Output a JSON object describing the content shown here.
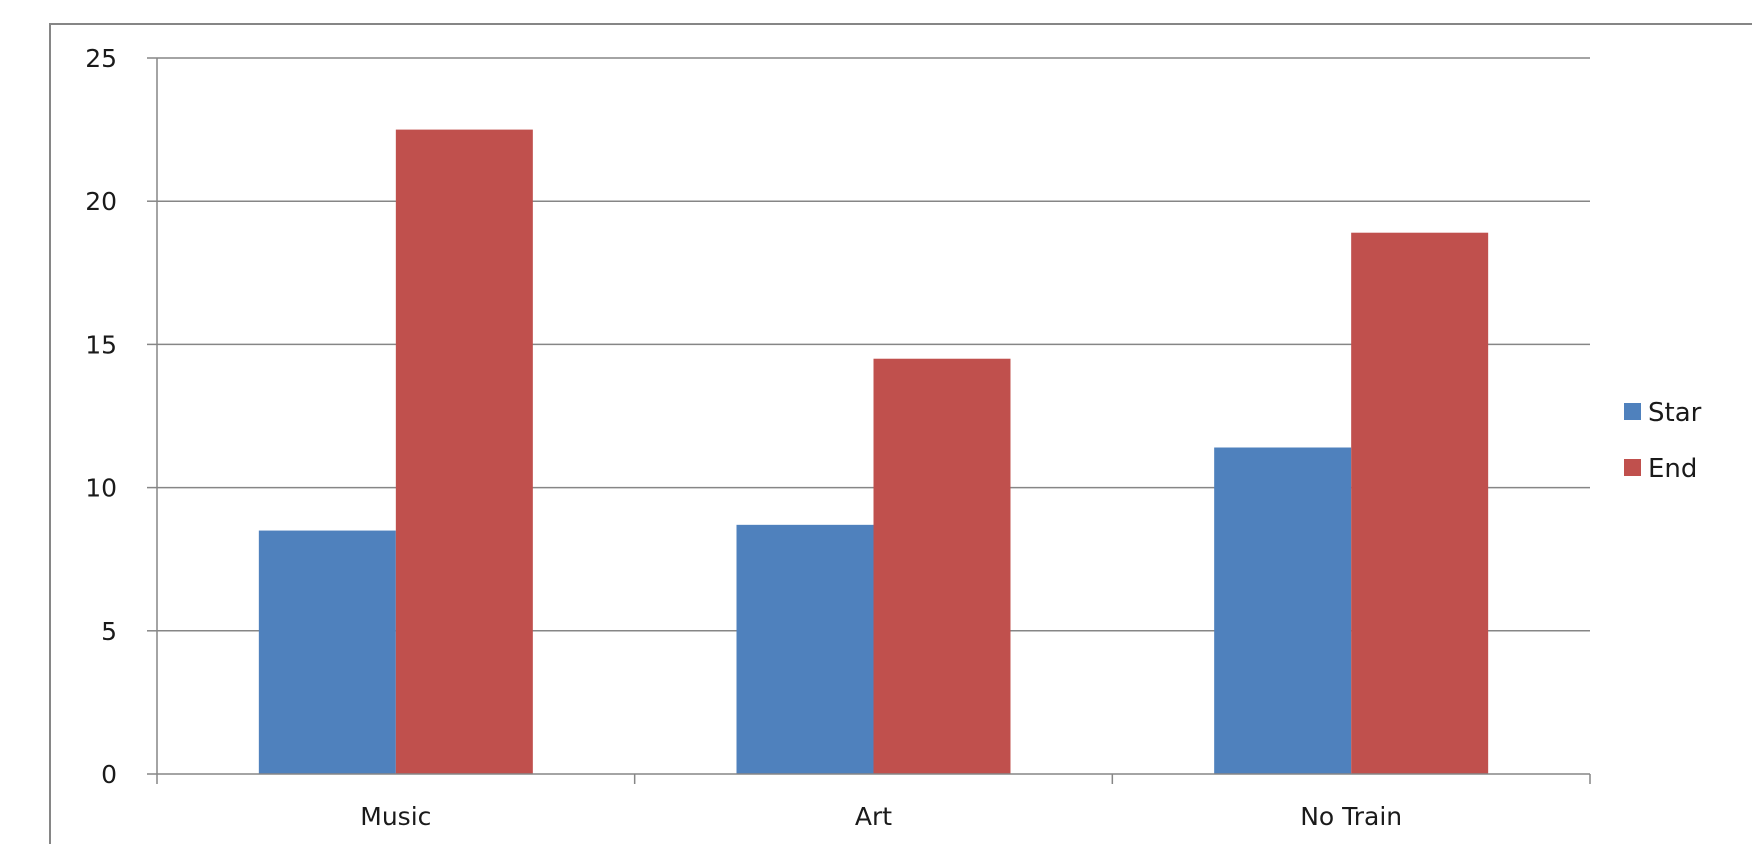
{
  "chart_data": {
    "type": "bar",
    "categories": [
      "Music",
      "Art",
      "No Train"
    ],
    "series": [
      {
        "name": "Star",
        "color": "#4f81bd",
        "values": [
          8.5,
          8.7,
          11.4
        ]
      },
      {
        "name": "End",
        "color": "#c0504d",
        "values": [
          22.5,
          14.5,
          18.9
        ]
      }
    ],
    "title": "",
    "xlabel": "",
    "ylabel": "",
    "ylim": [
      0,
      25
    ],
    "yticks": [
      "0",
      "5",
      "10",
      "15",
      "20",
      "25"
    ],
    "grid": true,
    "legend_position": "right"
  }
}
